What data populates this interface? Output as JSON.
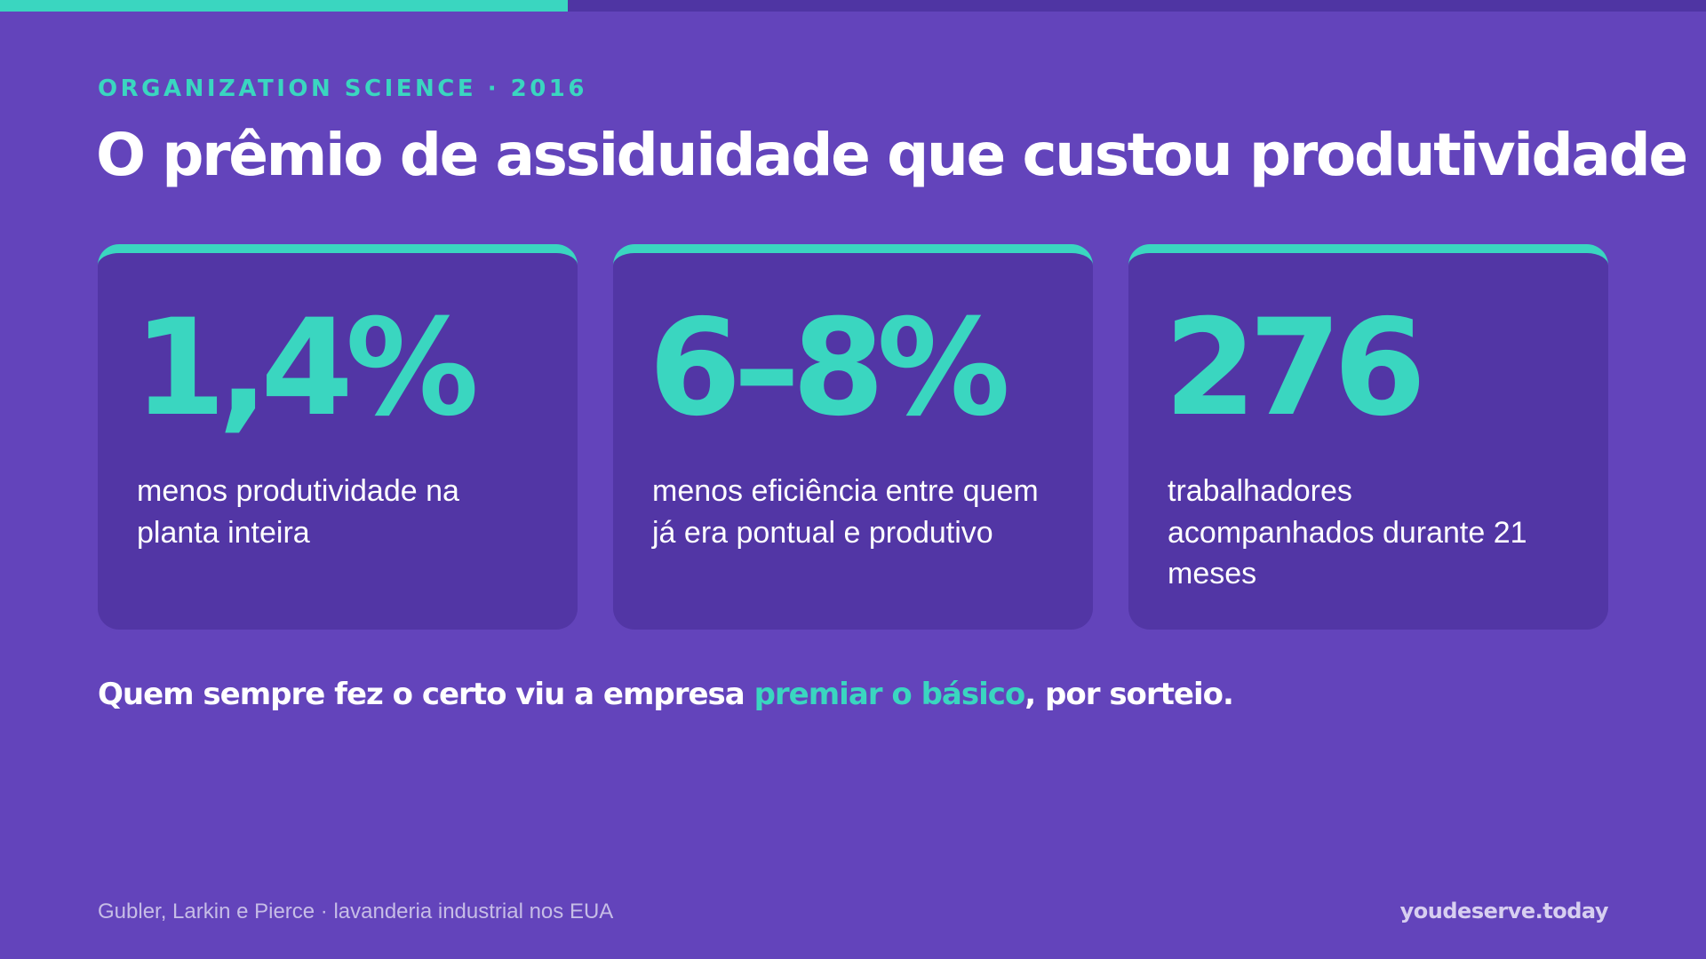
{
  "progress": {
    "value": 0.333,
    "color": "#3ad6c0"
  },
  "eyebrow": "ORGANIZATION SCIENCE · 2016",
  "title": "O prêmio de assiduidade que custou produtividade",
  "cards": [
    {
      "number": "1,4%",
      "description": "menos produtividade na planta inteira"
    },
    {
      "number": "6–8%",
      "description": "menos eficiência entre quem já era pontual e produtivo"
    },
    {
      "number": "276",
      "description": "trabalhadores acompanhados durante 21 meses"
    }
  ],
  "tagline": {
    "before": "Quem sempre fez o certo viu a empresa ",
    "highlight": "premiar o básico",
    "after": ", por sorteio."
  },
  "footer": {
    "source": "Gubler, Larkin e Pierce · lavanderia industrial nos EUA",
    "brand": "youdeserve.today"
  },
  "colors": {
    "background": "#6344bb",
    "card": "#5236a5",
    "accent": "#3ad6c0",
    "text": "#ffffff"
  }
}
